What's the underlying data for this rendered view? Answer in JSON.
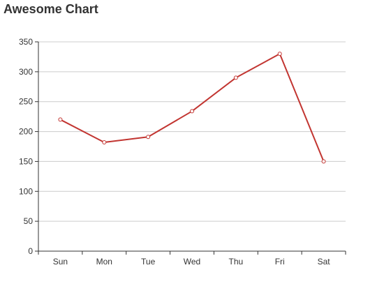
{
  "chart_data": {
    "type": "line",
    "title": "Awesome Chart",
    "xlabel": "",
    "ylabel": "",
    "categories": [
      "Sun",
      "Mon",
      "Tue",
      "Wed",
      "Thu",
      "Fri",
      "Sat"
    ],
    "series": [
      {
        "values": [
          220,
          182,
          191,
          234,
          290,
          330,
          150
        ],
        "color": "#c23531"
      }
    ],
    "ylim": [
      0,
      350
    ],
    "yticks": [
      0,
      50,
      100,
      150,
      200,
      250,
      300,
      350
    ],
    "grid": true,
    "legend": "none"
  }
}
